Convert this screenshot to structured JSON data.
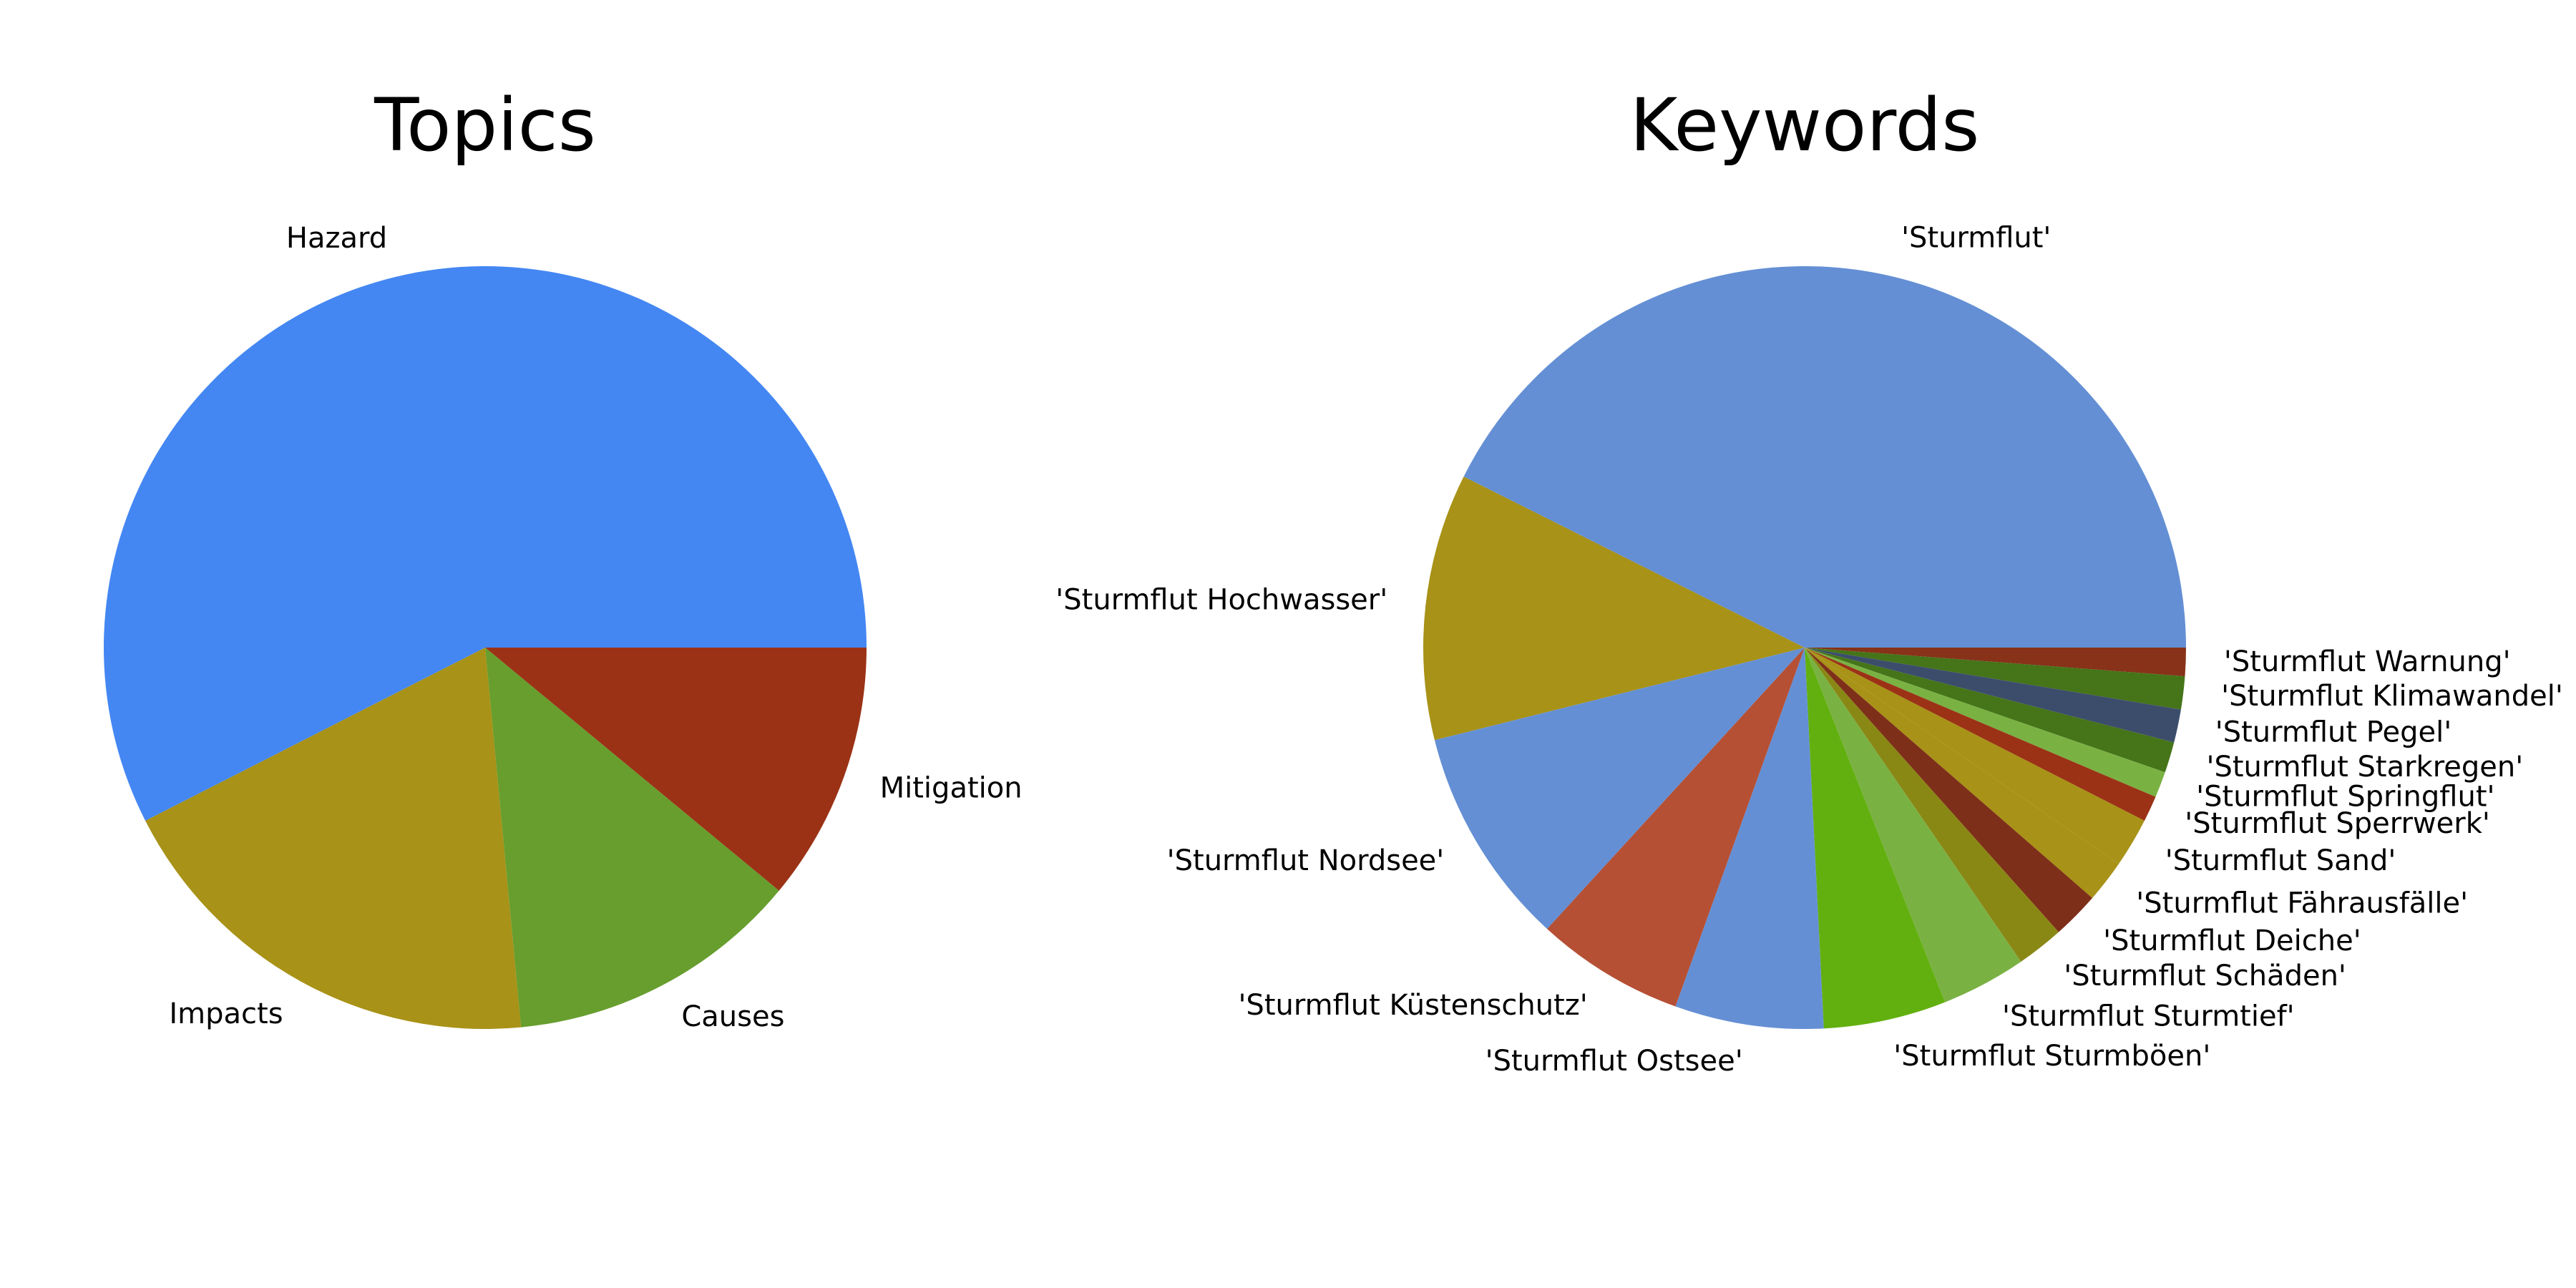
{
  "chart_data": [
    {
      "type": "pie",
      "title": "Topics",
      "start_angle_deg": 0,
      "direction": "clockwise",
      "labels": [
        "Mitigation",
        "Causes",
        "Impacts",
        "Hazard"
      ],
      "values": [
        11,
        12.5,
        19,
        57.5
      ],
      "colors": [
        "#9B3216",
        "#679E2E",
        "#A89217",
        "#4487F3"
      ]
    },
    {
      "type": "pie",
      "title": "Keywords",
      "start_angle_deg": 0,
      "direction": "clockwise",
      "labels": [
        "'Sturmflut Warnung'",
        "'Sturmflut Klimawandel'",
        "'Sturmflut Pegel'",
        "'Sturmflut Starkregen'",
        "'Sturmflut Springflut'",
        "'Sturmflut Sperrwerk'",
        "'Sturmflut Sand'",
        "'Sturmflut Fährausfälle'",
        "'Sturmflut Deiche'",
        "'Sturmflut Schäden'",
        "'Sturmflut Sturmtief'",
        "'Sturmflut Sturmböen'",
        "'Sturmflut Ostsee'",
        "'Sturmflut Küstenschutz'",
        "'Sturmflut Nordsee'",
        "'Sturmflut Hochwasser'",
        "'Sturmflut'"
      ],
      "values": [
        1.2,
        1.4,
        1.4,
        1.3,
        1.1,
        1.1,
        2.1,
        1.8,
        2.0,
        2.0,
        3.6,
        5.2,
        6.3,
        6.3,
        9.3,
        11.3,
        42.6
      ],
      "colors": [
        "#873219",
        "#457419",
        "#3C4D6C",
        "#457419",
        "#7AB143",
        "#9B3216",
        "#A89217",
        "#A89217",
        "#7E2F19",
        "#898815",
        "#7AB143",
        "#62B010",
        "#648FD4",
        "#B55035",
        "#648FD4",
        "#A89217",
        "#648FD4"
      ]
    }
  ]
}
